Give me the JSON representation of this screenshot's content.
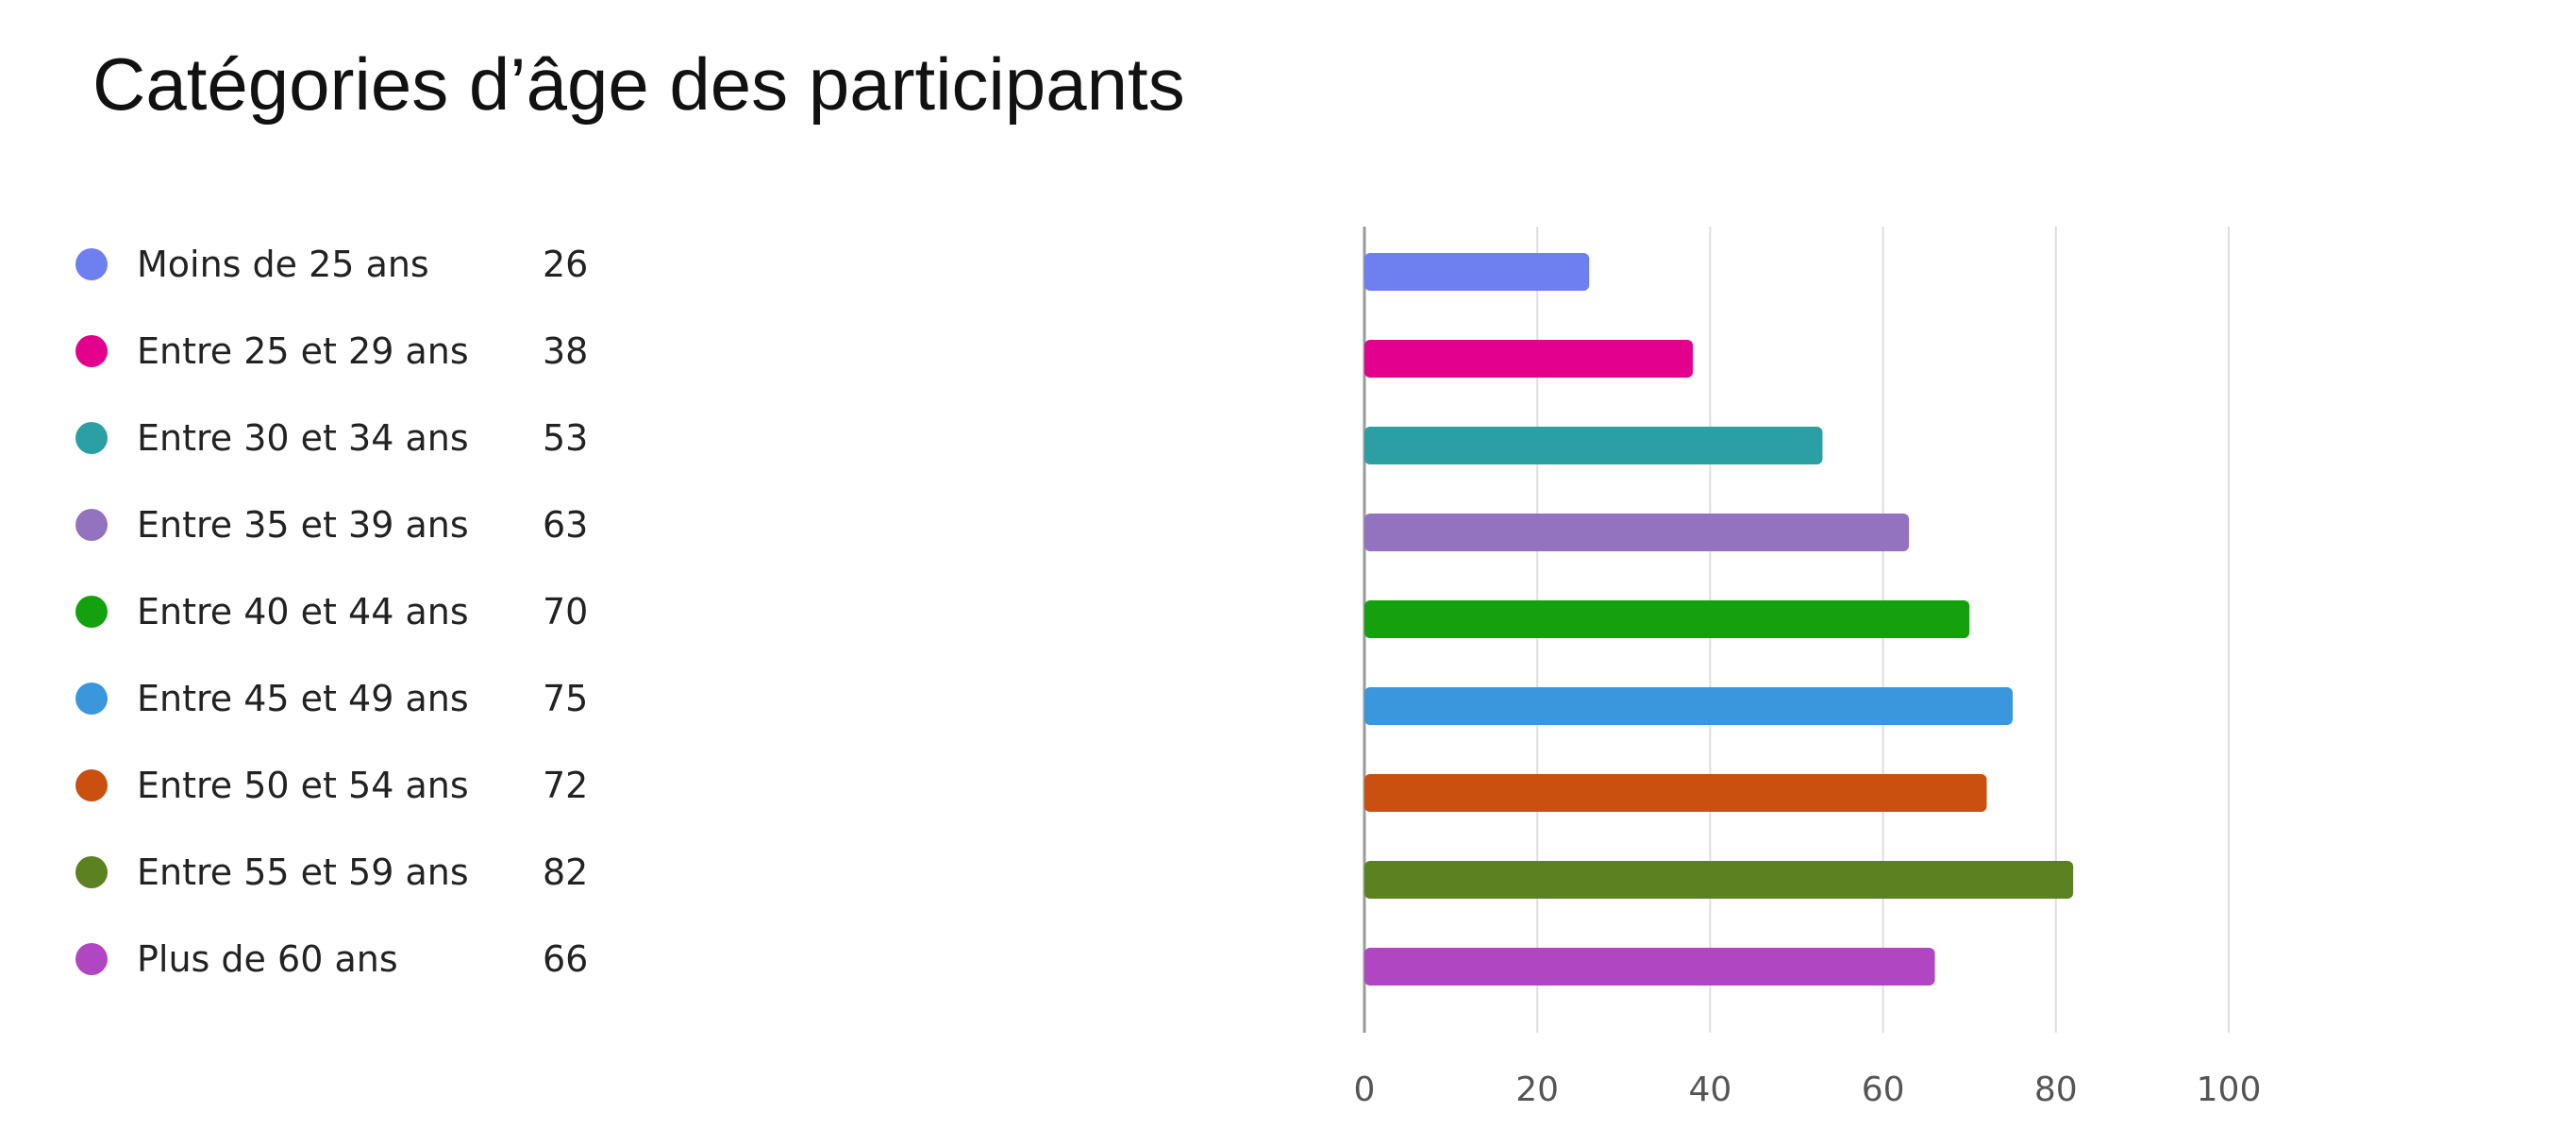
{
  "chart_data": {
    "type": "bar",
    "orientation": "horizontal",
    "title": "Catégories d’âge des participants",
    "categories": [
      "Moins de 25 ans",
      "Entre 25 et 29 ans",
      "Entre 30 et 34 ans",
      "Entre 35 et 39 ans",
      "Entre 40 et 44 ans",
      "Entre 45 et 49 ans",
      "Entre 50 et 54 ans",
      "Entre 55 et 59 ans",
      "Plus de 60 ans"
    ],
    "values": [
      26,
      38,
      53,
      63,
      70,
      75,
      72,
      82,
      66
    ],
    "colors": [
      "#6e7ff0",
      "#e3008c",
      "#2aa0a4",
      "#9373c0",
      "#13a10e",
      "#3a96dd",
      "#ca5010",
      "#5c8121",
      "#b146c2"
    ],
    "xlim": [
      0,
      100
    ],
    "x_ticks": [
      0,
      20,
      40,
      60,
      80,
      100
    ],
    "grid": true,
    "legend_position": "left"
  }
}
